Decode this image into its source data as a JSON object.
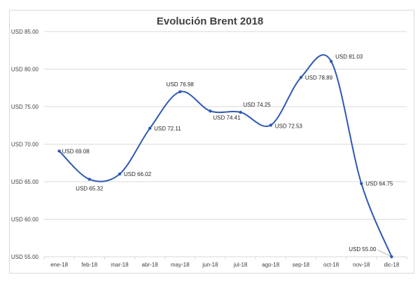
{
  "chart_data": {
    "type": "line",
    "title": "Evolución Brent 2018",
    "xlabel": "",
    "ylabel": "",
    "categories": [
      "ene-18",
      "feb-18",
      "mar-18",
      "abr-18",
      "may-18",
      "jun-18",
      "jul-18",
      "ago-18",
      "sep-18",
      "oct-18",
      "nov-18",
      "dic-18"
    ],
    "values": [
      69.08,
      65.32,
      66.02,
      72.11,
      76.98,
      74.41,
      74.25,
      72.53,
      78.89,
      81.03,
      64.75,
      55.0
    ],
    "data_labels": [
      "USD 69.08",
      "USD 65.32",
      "USD 66.02",
      "USD 72.11",
      "USD 76.98",
      "USD 74.41",
      "USD 74.25",
      "USD 72.53",
      "USD 78.89",
      "USD 81.03",
      "USD 64.75",
      "USD 55.00"
    ],
    "ylim": [
      55,
      85
    ],
    "yticks": [
      55,
      60,
      65,
      70,
      75,
      80,
      85
    ],
    "ytick_labels": [
      "USD 55.00",
      "USD 60.00",
      "USD 65.00",
      "USD 70.00",
      "USD 75.00",
      "USD 80.00",
      "USD 85.00"
    ],
    "smoothed": true,
    "grid": "horizontal",
    "legend": "none",
    "colors": {
      "line": "#2e59b3",
      "grid": "#d9d9d9",
      "text": "#404040"
    }
  }
}
